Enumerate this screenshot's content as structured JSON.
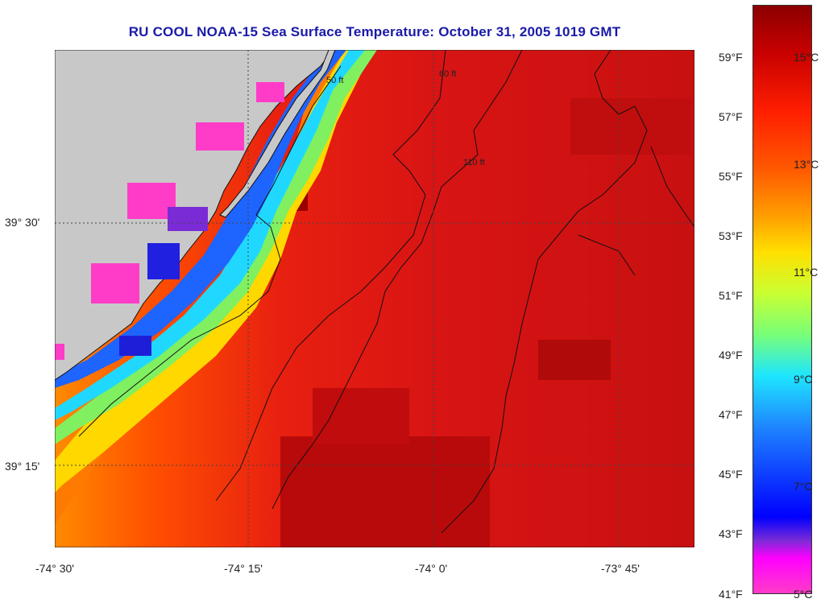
{
  "title": "RU COOL  NOAA-15  Sea Surface Temperature:  October 31, 2005 1019 GMT",
  "lat_labels": [
    "39° 30'",
    "39° 15'"
  ],
  "lon_labels": [
    "-74° 30'",
    "-74° 15'",
    "-74° 0'",
    "-73° 45'"
  ],
  "fahrenheit_labels": [
    "59°F",
    "57°F",
    "55°F",
    "53°F",
    "51°F",
    "49°F",
    "47°F",
    "45°F",
    "43°F",
    "41°F"
  ],
  "celsius_labels": [
    "15°C",
    "13°C",
    "11°C",
    "9°C",
    "7°C",
    "5°C"
  ],
  "contour_labels": [
    "50 ft",
    "60 ft",
    "110 ft"
  ],
  "colors": {
    "land": "#c8c8c8",
    "ocean_warm": "#d81414",
    "title": "#1a1aa8"
  }
}
